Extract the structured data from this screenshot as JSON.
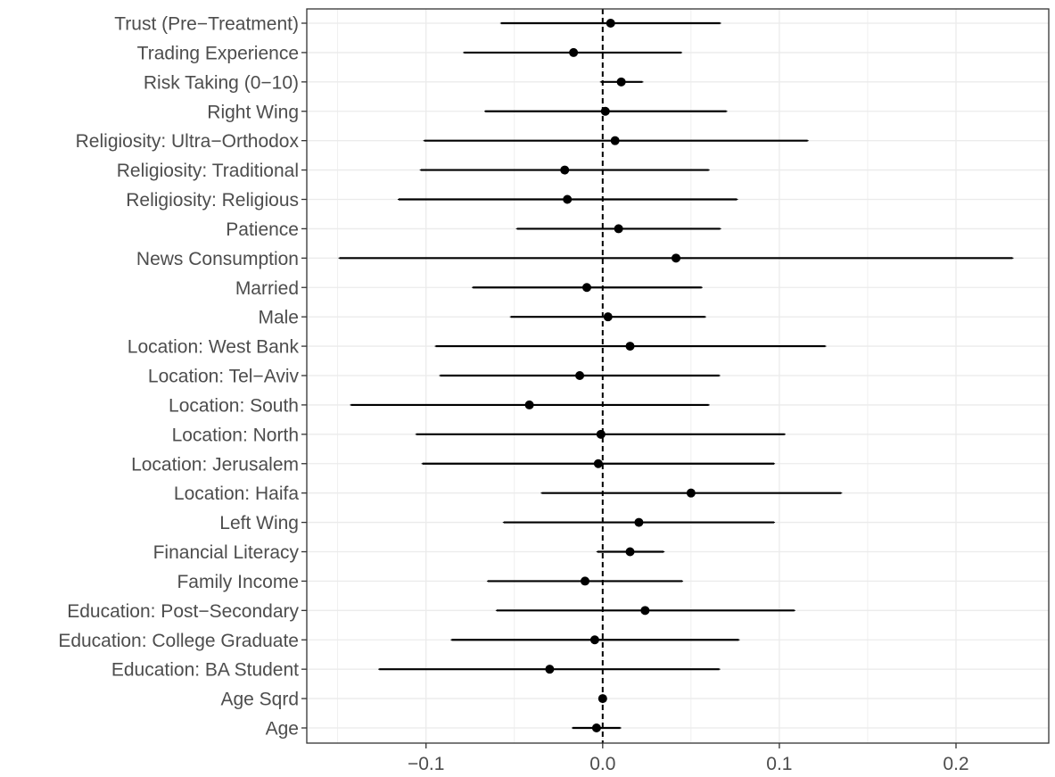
{
  "chart_data": {
    "type": "scatter",
    "subtype": "coefficient-plot",
    "title": "",
    "xlabel": "",
    "ylabel": "",
    "xlim": [
      -0.1675,
      0.2525
    ],
    "xticks": [
      -0.1,
      0.0,
      0.1,
      0.2
    ],
    "xtick_labels": [
      "−0.1",
      "0.0",
      "0.1",
      "0.2"
    ],
    "minor_gridlines_x": [
      -0.15,
      -0.05,
      0.05,
      0.15
    ],
    "reference_line": {
      "x": 0,
      "style": "dashed"
    },
    "grid": true,
    "points": [
      {
        "label": "Trust (Pre−Treatment)",
        "estimate": 0.0045,
        "lower": -0.0575,
        "upper": 0.0665
      },
      {
        "label": "Trading Experience",
        "estimate": -0.0165,
        "lower": -0.0785,
        "upper": 0.0445
      },
      {
        "label": "Risk Taking (0−10)",
        "estimate": 0.0105,
        "lower": -0.001,
        "upper": 0.0225
      },
      {
        "label": "Right Wing",
        "estimate": 0.0015,
        "lower": -0.0665,
        "upper": 0.07
      },
      {
        "label": "Religiosity: Ultra−Orthodox",
        "estimate": 0.007,
        "lower": -0.101,
        "upper": 0.116
      },
      {
        "label": "Religiosity: Traditional",
        "estimate": -0.0215,
        "lower": -0.103,
        "upper": 0.06
      },
      {
        "label": "Religiosity: Religious",
        "estimate": -0.02,
        "lower": -0.1155,
        "upper": 0.076
      },
      {
        "label": "Patience",
        "estimate": 0.009,
        "lower": -0.0485,
        "upper": 0.0665
      },
      {
        "label": "News Consumption",
        "estimate": 0.0415,
        "lower": -0.149,
        "upper": 0.232
      },
      {
        "label": "Married",
        "estimate": -0.009,
        "lower": -0.0735,
        "upper": 0.056
      },
      {
        "label": "Male",
        "estimate": 0.003,
        "lower": -0.052,
        "upper": 0.058
      },
      {
        "label": "Location: West Bank",
        "estimate": 0.0155,
        "lower": -0.0945,
        "upper": 0.126
      },
      {
        "label": "Location: Tel−Aviv",
        "estimate": -0.013,
        "lower": -0.092,
        "upper": 0.066
      },
      {
        "label": "Location: South",
        "estimate": -0.0415,
        "lower": -0.1425,
        "upper": 0.06
      },
      {
        "label": "Location: North",
        "estimate": -0.001,
        "lower": -0.1055,
        "upper": 0.103
      },
      {
        "label": "Location: Jerusalem",
        "estimate": -0.0025,
        "lower": -0.102,
        "upper": 0.097
      },
      {
        "label": "Location: Haifa",
        "estimate": 0.05,
        "lower": -0.0345,
        "upper": 0.135
      },
      {
        "label": "Left Wing",
        "estimate": 0.0205,
        "lower": -0.056,
        "upper": 0.097
      },
      {
        "label": "Financial Literacy",
        "estimate": 0.0155,
        "lower": -0.003,
        "upper": 0.0345
      },
      {
        "label": "Family Income",
        "estimate": -0.01,
        "lower": -0.065,
        "upper": 0.045
      },
      {
        "label": "Education: Post−Secondary",
        "estimate": 0.024,
        "lower": -0.06,
        "upper": 0.1085
      },
      {
        "label": "Education: College Graduate",
        "estimate": -0.0045,
        "lower": -0.0855,
        "upper": 0.077
      },
      {
        "label": "Education: BA Student",
        "estimate": -0.03,
        "lower": -0.1265,
        "upper": 0.066
      },
      {
        "label": "Age Sqrd",
        "estimate": 0.0,
        "lower": 0.0,
        "upper": 0.0
      },
      {
        "label": "Age",
        "estimate": -0.0035,
        "lower": -0.017,
        "upper": 0.01
      }
    ]
  }
}
